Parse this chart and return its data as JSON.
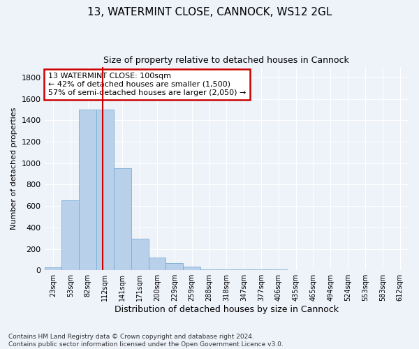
{
  "title_line1": "13, WATERMINT CLOSE, CANNOCK, WS12 2GL",
  "title_line2": "Size of property relative to detached houses in Cannock",
  "xlabel": "Distribution of detached houses by size in Cannock",
  "ylabel": "Number of detached properties",
  "bin_labels": [
    "23sqm",
    "53sqm",
    "82sqm",
    "112sqm",
    "141sqm",
    "171sqm",
    "200sqm",
    "229sqm",
    "259sqm",
    "288sqm",
    "318sqm",
    "347sqm",
    "377sqm",
    "406sqm",
    "435sqm",
    "465sqm",
    "494sqm",
    "524sqm",
    "553sqm",
    "583sqm",
    "612sqm"
  ],
  "bar_values": [
    30,
    650,
    1500,
    1500,
    950,
    295,
    120,
    65,
    35,
    10,
    5,
    5,
    5,
    5,
    0,
    0,
    0,
    0,
    0,
    0,
    0
  ],
  "bar_color": "#b8d0ea",
  "bar_edge_color": "#7aaed6",
  "vline_x_index": 2.87,
  "vline_color": "#cc0000",
  "annotation_text": "13 WATERMINT CLOSE: 100sqm\n← 42% of detached houses are smaller (1,500)\n57% of semi-detached houses are larger (2,050) →",
  "annotation_box_color": "#ffffff",
  "annotation_box_edge": "#cc0000",
  "ylim": [
    0,
    1900
  ],
  "yticks": [
    0,
    200,
    400,
    600,
    800,
    1000,
    1200,
    1400,
    1600,
    1800
  ],
  "footer_text": "Contains HM Land Registry data © Crown copyright and database right 2024.\nContains public sector information licensed under the Open Government Licence v3.0.",
  "background_color": "#eef2f9",
  "grid_color": "#ffffff",
  "fig_width": 6.0,
  "fig_height": 5.0
}
